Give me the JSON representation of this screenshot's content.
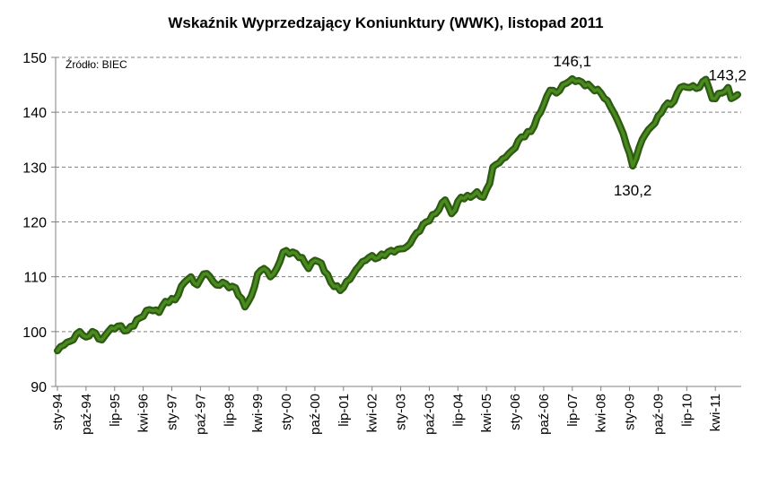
{
  "chart_data": {
    "type": "line",
    "title": "Wskaźnik Wyprzedzający Koniunktury (WWK), listopad 2011",
    "source": "Źródło: BIEC",
    "ylim": [
      90,
      150
    ],
    "yticks": [
      90,
      100,
      110,
      120,
      130,
      140,
      150
    ],
    "x_start": "1994-01",
    "x_end": "2011-11",
    "xtick_labels": [
      "sty-94",
      "paź-94",
      "lip-95",
      "kwi-96",
      "sty-97",
      "paź-97",
      "lip-98",
      "kwi-99",
      "sty-00",
      "paź-00",
      "lip-01",
      "kwi-02",
      "sty-03",
      "paź-03",
      "lip-04",
      "kwi-05",
      "sty-06",
      "paź-06",
      "lip-07",
      "kwi-08",
      "sty-09",
      "paź-09",
      "lip-10",
      "kwi-11"
    ],
    "xtick_step_months": 9,
    "grid": true,
    "line_color": "#2d5a12",
    "line_highlight": "#4a8a1f",
    "annotations": [
      {
        "text": "146,1",
        "x": "2007-07",
        "y": 146.1
      },
      {
        "text": "130,2",
        "x": "2009-02",
        "y": 130.2
      },
      {
        "text": "143,2",
        "x": "2011-11",
        "y": 143.2
      }
    ],
    "series": [
      {
        "keypoints": [
          [
            "1994-01",
            96.5
          ],
          [
            "1994-03",
            97.5
          ],
          [
            "1994-06",
            98.5
          ],
          [
            "1994-08",
            100.0
          ],
          [
            "1994-10",
            99.0
          ],
          [
            "1994-12",
            100.0
          ],
          [
            "1995-03",
            98.5
          ],
          [
            "1995-05",
            100.0
          ],
          [
            "1995-08",
            101.0
          ],
          [
            "1995-11",
            100.2
          ],
          [
            "1996-03",
            102.5
          ],
          [
            "1996-06",
            104.0
          ],
          [
            "1996-09",
            103.5
          ],
          [
            "1996-11",
            105.5
          ],
          [
            "1997-02",
            105.8
          ],
          [
            "1997-05",
            109.0
          ],
          [
            "1997-07",
            110.0
          ],
          [
            "1997-09",
            108.5
          ],
          [
            "1997-11",
            110.5
          ],
          [
            "1998-01",
            110.0
          ],
          [
            "1998-03",
            108.5
          ],
          [
            "1998-05",
            109.0
          ],
          [
            "1998-07",
            108.0
          ],
          [
            "1998-09",
            108.0
          ],
          [
            "1998-12",
            104.5
          ],
          [
            "1999-02",
            106.5
          ],
          [
            "1999-04",
            110.5
          ],
          [
            "1999-06",
            111.5
          ],
          [
            "1999-08",
            110.0
          ],
          [
            "1999-10",
            111.5
          ],
          [
            "1999-12",
            114.5
          ],
          [
            "2000-03",
            114.5
          ],
          [
            "2000-06",
            113.5
          ],
          [
            "2000-08",
            111.5
          ],
          [
            "2000-10",
            113.0
          ],
          [
            "2000-12",
            112.5
          ],
          [
            "2001-03",
            109.0
          ],
          [
            "2001-06",
            107.5
          ],
          [
            "2001-09",
            109.5
          ],
          [
            "2001-12",
            112.0
          ],
          [
            "2002-03",
            113.5
          ],
          [
            "2002-06",
            113.5
          ],
          [
            "2002-09",
            114.5
          ],
          [
            "2002-12",
            115.0
          ],
          [
            "2003-03",
            115.5
          ],
          [
            "2003-06",
            118.0
          ],
          [
            "2003-09",
            120.0
          ],
          [
            "2003-12",
            121.5
          ],
          [
            "2004-03",
            124.0
          ],
          [
            "2004-05",
            121.5
          ],
          [
            "2004-08",
            124.5
          ],
          [
            "2004-11",
            124.5
          ],
          [
            "2005-01",
            125.5
          ],
          [
            "2005-03",
            124.5
          ],
          [
            "2005-05",
            127.0
          ],
          [
            "2005-06",
            130.0
          ],
          [
            "2005-09",
            131.5
          ],
          [
            "2005-12",
            133.0
          ],
          [
            "2006-03",
            135.5
          ],
          [
            "2006-06",
            136.5
          ],
          [
            "2006-09",
            140.0
          ],
          [
            "2006-12",
            144.0
          ],
          [
            "2007-02",
            143.5
          ],
          [
            "2007-04",
            145.0
          ],
          [
            "2007-07",
            146.1
          ],
          [
            "2007-10",
            145.5
          ],
          [
            "2008-01",
            144.5
          ],
          [
            "2008-04",
            143.5
          ],
          [
            "2008-07",
            141.0
          ],
          [
            "2008-10",
            137.5
          ],
          [
            "2009-01",
            132.5
          ],
          [
            "2009-02",
            130.2
          ],
          [
            "2009-04",
            133.5
          ],
          [
            "2009-06",
            136.0
          ],
          [
            "2009-09",
            138.0
          ],
          [
            "2009-12",
            141.0
          ],
          [
            "2010-03",
            142.0
          ],
          [
            "2010-05",
            144.5
          ],
          [
            "2010-08",
            144.5
          ],
          [
            "2010-11",
            144.5
          ],
          [
            "2011-01",
            146.0
          ],
          [
            "2011-03",
            142.5
          ],
          [
            "2011-06",
            143.5
          ],
          [
            "2011-08",
            144.5
          ],
          [
            "2011-09",
            142.5
          ],
          [
            "2011-11",
            143.2
          ]
        ]
      }
    ]
  }
}
